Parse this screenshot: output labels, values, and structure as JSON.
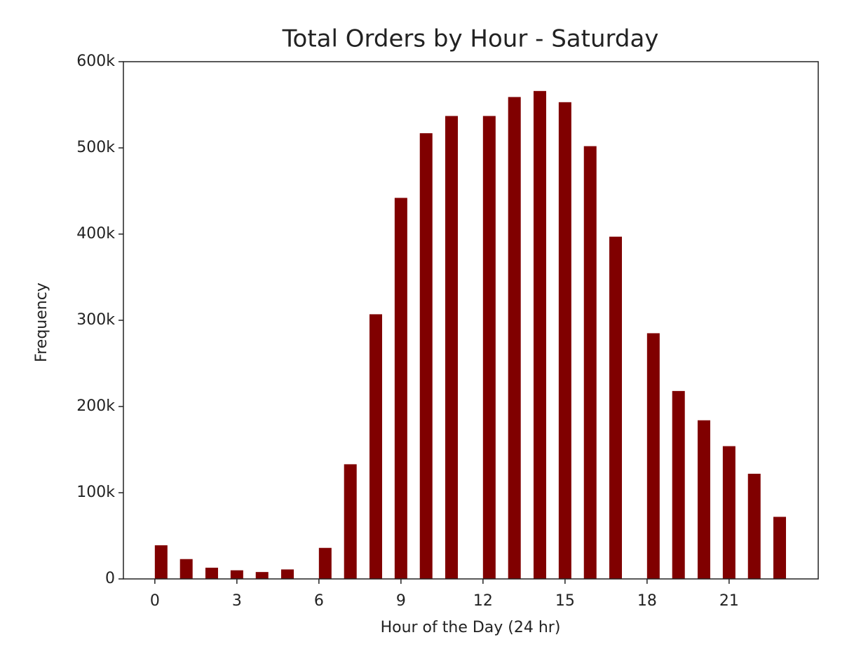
{
  "chart_data": {
    "type": "bar",
    "title": "Total Orders by Hour - Saturday",
    "xlabel": "Hour of the Day (24 hr)",
    "ylabel": "Frequency",
    "x": [
      0.23,
      1.15,
      2.08,
      3.0,
      3.92,
      4.85,
      6.23,
      7.15,
      8.08,
      9.0,
      9.92,
      10.85,
      12.23,
      13.15,
      14.08,
      15.0,
      15.92,
      16.85,
      18.23,
      19.15,
      20.08,
      21.0,
      21.92,
      22.85
    ],
    "values": [
      39000,
      23000,
      13000,
      10000,
      8000,
      11000,
      36000,
      133000,
      307000,
      442000,
      517000,
      537000,
      537000,
      559000,
      566000,
      553000,
      502000,
      397000,
      285000,
      218000,
      184000,
      154000,
      122000,
      72000
    ],
    "color": "#800000",
    "xlim": [
      -1.15,
      24.26
    ],
    "xticks": [
      0,
      3,
      6,
      9,
      12,
      15,
      18,
      21
    ],
    "ylim": [
      0,
      600000
    ],
    "yticks": [
      0,
      {
        "value": 100000,
        "label": "100k"
      },
      {
        "value": 200000,
        "label": "200k"
      },
      {
        "value": 300000,
        "label": "300k"
      },
      {
        "value": 400000,
        "label": "400k"
      },
      {
        "value": 500000,
        "label": "500k"
      },
      {
        "value": 600000,
        "label": "600k"
      }
    ],
    "grid": false
  }
}
